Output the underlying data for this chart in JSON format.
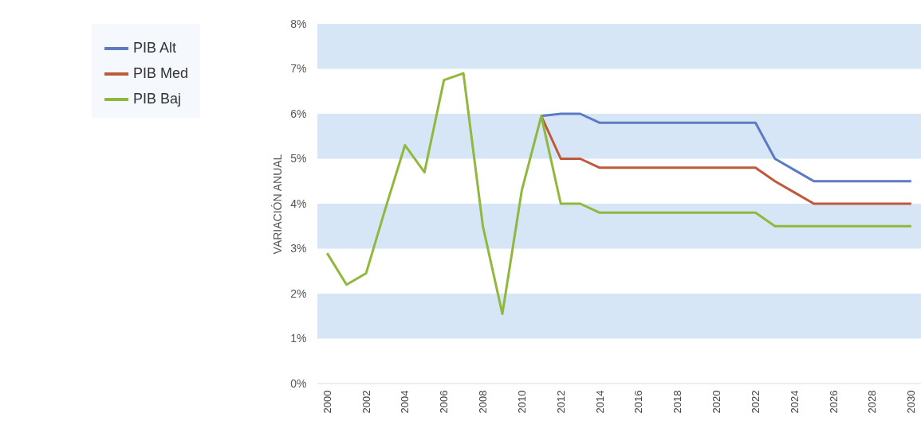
{
  "chart_data": {
    "type": "line",
    "ylabel": "VARIACIÓN ANUAL",
    "x": [
      2000,
      2001,
      2002,
      2003,
      2004,
      2005,
      2006,
      2007,
      2008,
      2009,
      2010,
      2011,
      2012,
      2013,
      2014,
      2015,
      2016,
      2017,
      2018,
      2019,
      2020,
      2021,
      2022,
      2023,
      2024,
      2025,
      2026,
      2027,
      2028,
      2029,
      2030
    ],
    "series": [
      {
        "name": "PIB Alt",
        "color": "#5b7cc4",
        "values": [
          null,
          null,
          null,
          null,
          null,
          null,
          null,
          null,
          null,
          null,
          null,
          5.95,
          6.0,
          6.0,
          5.8,
          5.8,
          5.8,
          5.8,
          5.8,
          5.8,
          5.8,
          5.8,
          5.8,
          5.0,
          4.75,
          4.5,
          4.5,
          4.5,
          4.5,
          4.5,
          4.5
        ]
      },
      {
        "name": "PIB Med",
        "color": "#c0583a",
        "values": [
          null,
          null,
          null,
          null,
          null,
          null,
          null,
          null,
          null,
          null,
          null,
          5.95,
          5.0,
          5.0,
          4.8,
          4.8,
          4.8,
          4.8,
          4.8,
          4.8,
          4.8,
          4.8,
          4.8,
          4.5,
          4.25,
          4.0,
          4.0,
          4.0,
          4.0,
          4.0,
          4.0
        ]
      },
      {
        "name": "PIB Baj",
        "color": "#8fb83c",
        "values": [
          2.9,
          2.2,
          2.45,
          3.9,
          5.3,
          4.7,
          6.75,
          6.9,
          3.5,
          1.55,
          4.3,
          5.95,
          4.0,
          4.0,
          3.8,
          3.8,
          3.8,
          3.8,
          3.8,
          3.8,
          3.8,
          3.8,
          3.8,
          3.5,
          3.5,
          3.5,
          3.5,
          3.5,
          3.5,
          3.5,
          3.5
        ]
      }
    ],
    "xlim": [
      1999.5,
      2030.5
    ],
    "xticks": [
      2000,
      2002,
      2004,
      2006,
      2008,
      2010,
      2012,
      2014,
      2016,
      2018,
      2020,
      2022,
      2024,
      2026,
      2028,
      2030
    ],
    "ylim": [
      0,
      8
    ],
    "yticks": [
      {
        "value": 0,
        "label": "0%"
      },
      {
        "value": 1,
        "label": "1%"
      },
      {
        "value": 2,
        "label": "2%"
      },
      {
        "value": 3,
        "label": "3%"
      },
      {
        "value": 4,
        "label": "4%"
      },
      {
        "value": 5,
        "label": "5%"
      },
      {
        "value": 6,
        "label": "6%"
      },
      {
        "value": 7,
        "label": "7%"
      },
      {
        "value": 8,
        "label": "8%"
      }
    ],
    "bands": [
      {
        "axis": "y",
        "from": 1,
        "to": 2,
        "color": "#d6e6f7"
      },
      {
        "axis": "y",
        "from": 3,
        "to": 4,
        "color": "#d6e6f7"
      },
      {
        "axis": "y",
        "from": 5,
        "to": 6,
        "color": "#d6e6f7"
      },
      {
        "axis": "y",
        "from": 7,
        "to": 8,
        "color": "#d6e6f7"
      }
    ],
    "legend": "top left",
    "grid": false,
    "marker": "none",
    "line_style": "solid"
  }
}
